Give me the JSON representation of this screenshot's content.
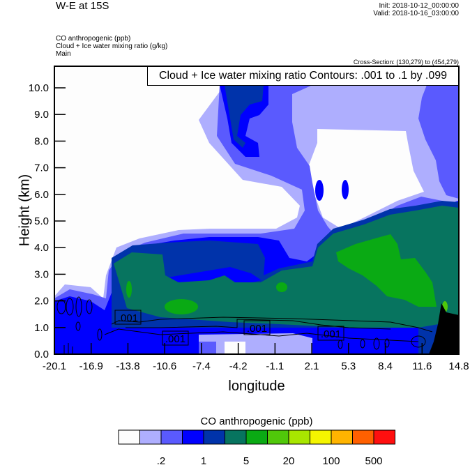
{
  "header": {
    "title": "W-E at 15S",
    "init": "Init: 2018-10-12_00:00:00",
    "valid": "Valid: 2018-10-16_03:00:00",
    "fields": [
      "CO anthropogenic   (ppb)",
      "Cloud + Ice water mixing ratio   (g/kg)",
      "Main"
    ],
    "cross_section": "Cross-Section: (130,279) to (454,279)"
  },
  "chart_data": {
    "type": "heatmap",
    "title": "W-E at 15S",
    "contour_title": "Cloud + Ice water mixing ratio Contours: .001 to .1 by .099",
    "xlabel": "longitude",
    "ylabel": "Height (km)",
    "xlim": [
      -20.1,
      14.8
    ],
    "ylim": [
      0,
      10.8
    ],
    "x_ticks": [
      "-20.1",
      "-16.9",
      "-13.8",
      "-10.6",
      "-7.4",
      "-4.2",
      "-1.1",
      "2.1",
      "5.3",
      "8.4",
      "11.6",
      "14.8"
    ],
    "y_ticks": [
      "0.0",
      "1.0",
      "2.0",
      "3.0",
      "4.0",
      "5.0",
      "6.0",
      "7.0",
      "8.0",
      "9.0",
      "10.0"
    ],
    "contour_labels": [
      ".001",
      ".001",
      ".001",
      ".001"
    ],
    "colorbar": {
      "title": "CO anthropogenic  (ppb)",
      "colors": [
        "#fdfdfd",
        "#aeaefe",
        "#5a5afe",
        "#0000fe",
        "#0033aa",
        "#07745f",
        "#0aaa14",
        "#50c80a",
        "#a8e600",
        "#f5f500",
        "#ffb400",
        "#ff6000",
        "#ff0f0f"
      ],
      "labels": [
        {
          "text": ".2",
          "boundary": 2
        },
        {
          "text": "1",
          "boundary": 4
        },
        {
          "text": "5",
          "boundary": 6
        },
        {
          "text": "20",
          "boundary": 8
        },
        {
          "text": "100",
          "boundary": 10
        },
        {
          "text": "500",
          "boundary": 12
        }
      ]
    }
  }
}
